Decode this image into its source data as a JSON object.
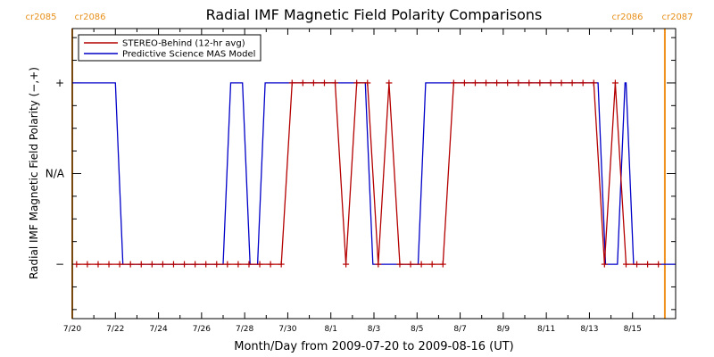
{
  "chart_data": {
    "type": "line",
    "title": "Radial IMF Magnetic Field Polarity Comparisons",
    "xlabel": "Month/Day from 2009-07-20 to 2009-08-16 (UT)",
    "ylabel": "Radial IMF Magnetic Field Polarity (−,+)",
    "xlim": [
      0,
      28
    ],
    "ylim": [
      -1.6,
      1.6
    ],
    "x_ticks": [
      {
        "label": "7/20",
        "day": 0
      },
      {
        "label": "7/22",
        "day": 2
      },
      {
        "label": "7/24",
        "day": 4
      },
      {
        "label": "7/26",
        "day": 6
      },
      {
        "label": "7/28",
        "day": 8
      },
      {
        "label": "7/30",
        "day": 10
      },
      {
        "label": "8/1",
        "day": 12
      },
      {
        "label": "8/3",
        "day": 14
      },
      {
        "label": "8/5",
        "day": 16
      },
      {
        "label": "8/7",
        "day": 18
      },
      {
        "label": "8/9",
        "day": 20
      },
      {
        "label": "8/11",
        "day": 22
      },
      {
        "label": "8/13",
        "day": 24
      },
      {
        "label": "8/15",
        "day": 26
      }
    ],
    "y_ticks": [
      {
        "label": "+",
        "value": 1
      },
      {
        "label": "N/A",
        "value": 0
      },
      {
        "label": "−",
        "value": -1
      }
    ],
    "legend": {
      "placement": "top-left",
      "entries": [
        "STEREO-Behind (12-hr avg)",
        "Predictive Science MAS Model"
      ]
    },
    "carrington_markers": [
      {
        "day": 0.0,
        "labels": [
          "cr2085",
          "cr2086"
        ],
        "color": "#f0901e"
      },
      {
        "day": 27.5,
        "labels": [
          "cr2086",
          "cr2087"
        ],
        "color": "#f0901e"
      }
    ],
    "series": [
      {
        "name": "STEREO-Behind (12-hr avg)",
        "color": "#b40000",
        "marker": "+",
        "x": [
          0.2,
          0.7,
          1.2,
          1.7,
          2.2,
          2.7,
          3.2,
          3.7,
          4.2,
          4.7,
          5.2,
          5.7,
          6.2,
          6.7,
          7.2,
          7.7,
          8.2,
          8.7,
          9.2,
          9.7,
          10.2,
          10.7,
          11.2,
          11.7,
          12.2,
          12.7,
          13.2,
          13.7,
          14.2,
          14.7,
          15.2,
          15.7,
          16.2,
          16.7,
          17.2,
          17.7,
          18.2,
          18.7,
          19.2,
          19.7,
          20.2,
          20.7,
          21.2,
          21.7,
          22.2,
          22.7,
          23.2,
          23.7,
          24.2,
          24.7,
          25.2,
          25.7,
          26.2,
          26.7,
          27.2
        ],
        "y": [
          -1,
          -1,
          -1,
          -1,
          -1,
          -1,
          -1,
          -1,
          -1,
          -1,
          -1,
          -1,
          -1,
          -1,
          -1,
          -1,
          -1,
          -1,
          -1,
          -1,
          1,
          1,
          1,
          1,
          1,
          -1,
          1,
          1,
          -1,
          1,
          -1,
          -1,
          -1,
          -1,
          -1,
          1,
          1,
          1,
          1,
          1,
          1,
          1,
          1,
          1,
          1,
          1,
          1,
          1,
          1,
          -1,
          1,
          -1,
          -1,
          -1,
          -1
        ]
      },
      {
        "name": "Predictive Science MAS Model",
        "color": "#0000c8",
        "marker": "",
        "x": [
          0,
          2.0,
          2.35,
          7.0,
          7.35,
          7.9,
          8.25,
          8.6,
          8.95,
          13.6,
          13.95,
          16.05,
          16.4,
          24.4,
          24.75,
          25.3,
          25.65,
          25.7,
          26.05,
          28
        ],
        "y": [
          1,
          1,
          -1,
          -1,
          1,
          1,
          -1,
          -1,
          1,
          1,
          -1,
          -1,
          1,
          1,
          -1,
          -1,
          1,
          1,
          -1,
          -1
        ]
      }
    ]
  }
}
